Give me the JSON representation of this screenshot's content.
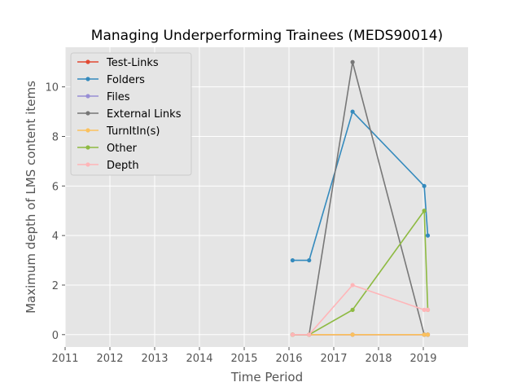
{
  "chart_data": {
    "type": "line",
    "title": "Managing Underperforming Trainees (MEDS90014)",
    "xlabel": "Time Period",
    "ylabel": "Maximum depth of LMS content items",
    "xlim": [
      2011,
      2020
    ],
    "ylim": [
      -0.5,
      11.6
    ],
    "xticks": [
      "2011",
      "2012",
      "2013",
      "2014",
      "2015",
      "2016",
      "2017",
      "2018",
      "2019"
    ],
    "yticks": [
      "0",
      "2",
      "4",
      "6",
      "8",
      "10"
    ],
    "grid": true,
    "legend_position": "top-left",
    "series": [
      {
        "name": "Test-Links",
        "color": "#E24A33",
        "x": [
          2016.08,
          2016.45,
          2017.42,
          2019.02,
          2019.1
        ],
        "y": [
          0,
          0,
          0,
          0,
          0
        ]
      },
      {
        "name": "Folders",
        "color": "#348ABD",
        "x": [
          2016.08,
          2016.45,
          2017.42,
          2019.02,
          2019.1
        ],
        "y": [
          3,
          3,
          9,
          6,
          4
        ]
      },
      {
        "name": "Files",
        "color": "#988ED5",
        "x": [
          2016.08,
          2016.45,
          2017.42,
          2019.02,
          2019.1
        ],
        "y": [
          0,
          0,
          0,
          0,
          0
        ]
      },
      {
        "name": "External Links",
        "color": "#777777",
        "x": [
          2016.08,
          2016.45,
          2017.42,
          2019.02,
          2019.1
        ],
        "y": [
          0,
          0,
          11,
          0,
          0
        ]
      },
      {
        "name": "TurnItIn(s)",
        "color": "#FBC15E",
        "x": [
          2016.08,
          2016.45,
          2017.42,
          2019.02,
          2019.1
        ],
        "y": [
          0,
          0,
          0,
          0,
          0
        ]
      },
      {
        "name": "Other",
        "color": "#8EBA42",
        "x": [
          2016.08,
          2016.45,
          2017.42,
          2019.02,
          2019.1
        ],
        "y": [
          0,
          0,
          1,
          5,
          1
        ]
      },
      {
        "name": "Depth",
        "color": "#FFB5B8",
        "x": [
          2016.08,
          2016.45,
          2017.42,
          2019.02,
          2019.1
        ],
        "y": [
          0,
          0,
          2,
          1,
          1
        ]
      }
    ]
  }
}
